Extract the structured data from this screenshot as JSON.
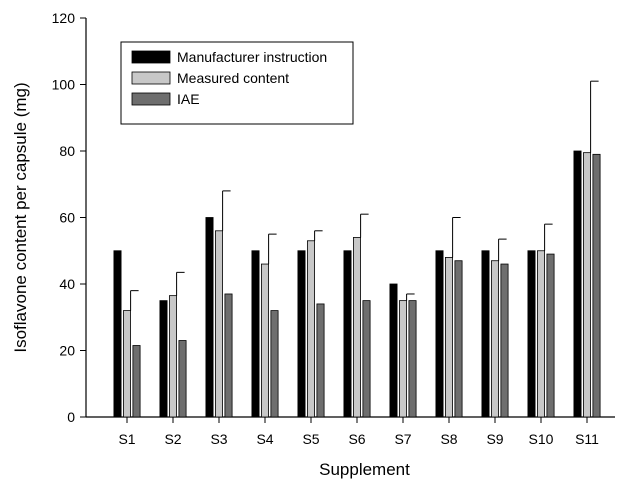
{
  "chart_data": {
    "type": "bar",
    "title": "",
    "xlabel": "Supplement",
    "ylabel": "Isoflavone content per capsule (mg)",
    "ylim": [
      0,
      120
    ],
    "yticks": [
      0,
      20,
      40,
      60,
      80,
      100,
      120
    ],
    "categories": [
      "S1",
      "S2",
      "S3",
      "S4",
      "S5",
      "S6",
      "S7",
      "S8",
      "S9",
      "S10",
      "S11"
    ],
    "series": [
      {
        "name": "Manufacturer instruction",
        "color": "#000000",
        "values": [
          50,
          35,
          60,
          50,
          50,
          50,
          40,
          50,
          50,
          50,
          80
        ],
        "error": [
          0,
          0,
          0,
          0,
          0,
          0,
          0,
          0,
          0,
          0,
          0
        ]
      },
      {
        "name": "Measured content",
        "color": "#c8c8c8",
        "values": [
          32,
          36.5,
          56,
          46,
          53,
          54,
          35,
          48,
          47,
          50,
          79.5
        ],
        "error": [
          6,
          7,
          12,
          9,
          3,
          7,
          2,
          12,
          6.5,
          8,
          21.5
        ]
      },
      {
        "name": "IAE",
        "color": "#6e6e6e",
        "values": [
          21.5,
          23,
          37,
          32,
          34,
          35,
          35,
          47,
          46,
          49,
          79
        ],
        "error": [
          0,
          0,
          0,
          0,
          0,
          0,
          0,
          0,
          0,
          0,
          0
        ]
      }
    ],
    "legend": {
      "position": "top-left"
    },
    "grid": false
  }
}
